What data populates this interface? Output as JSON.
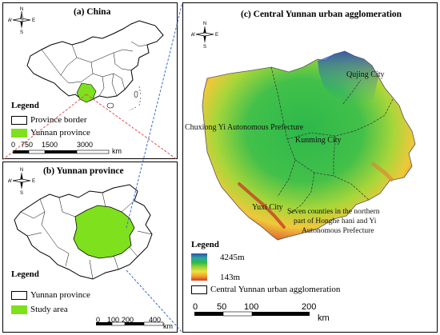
{
  "panel_a": {
    "title": "(a) China",
    "legend": {
      "title": "Legend",
      "items": [
        {
          "label": "Province border",
          "color": "#ffffff"
        },
        {
          "label": "Yunnan  province",
          "color": "#7fe01e"
        }
      ]
    },
    "scale": {
      "ticks": [
        "0",
        "750",
        "1500",
        "3000"
      ],
      "unit": "km"
    }
  },
  "panel_b": {
    "title": "(b) Yunnan province",
    "legend": {
      "title": "Legend",
      "items": [
        {
          "label": "Yunnan  province",
          "color": "#ffffff"
        },
        {
          "label": "Study area",
          "color": "#7fe01e"
        }
      ]
    },
    "scale": {
      "ticks": [
        "0",
        "100",
        "200",
        "400"
      ],
      "unit": "km"
    }
  },
  "panel_c": {
    "title": "(c) Central Yunnan urban agglomeration",
    "regions": {
      "qujing": "Qujing City",
      "chuxiong": "Chuxiong Yi Autonomous Prefecture",
      "kunming": "Kunming City",
      "yuxi": "Yuxi City",
      "honghe_1": "Seven counties in the northern",
      "honghe_2": "part of Honghe hani and Yi",
      "honghe_3": "Autonomous Prefecture"
    },
    "legend": {
      "title": "Legend",
      "elev_max": "4245m",
      "elev_min": "143m",
      "boundary_label": "Central Yunnan urban agglomeration",
      "ramp_colors": [
        "#2a4fb0",
        "#2fa7a0",
        "#2db84a",
        "#9bd23a",
        "#f0e03a",
        "#f0a030",
        "#d0402a"
      ]
    },
    "scale": {
      "ticks": [
        "0",
        "50",
        "100",
        "200"
      ],
      "unit": "km"
    }
  },
  "compass": {
    "n": "N",
    "s": "S",
    "e": "E",
    "w": "W"
  }
}
